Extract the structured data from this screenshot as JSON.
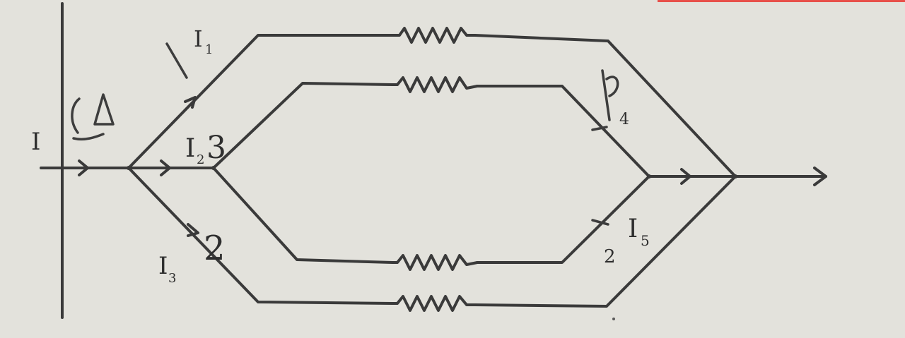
{
  "labels": {
    "main": "I",
    "i1": "I",
    "i1_sub": "1",
    "i2": "I",
    "i2_sub": "2",
    "i2_note": "3",
    "i3": "I",
    "i3_sub": "3",
    "i3_note": "2",
    "i4_sub": "4",
    "i5": "I",
    "i5_sub": "5",
    "i5_note": "2"
  },
  "colors": {
    "background": "#e3e2dc",
    "ink": "#3a3a3a",
    "top_strip": "#e8504a"
  }
}
